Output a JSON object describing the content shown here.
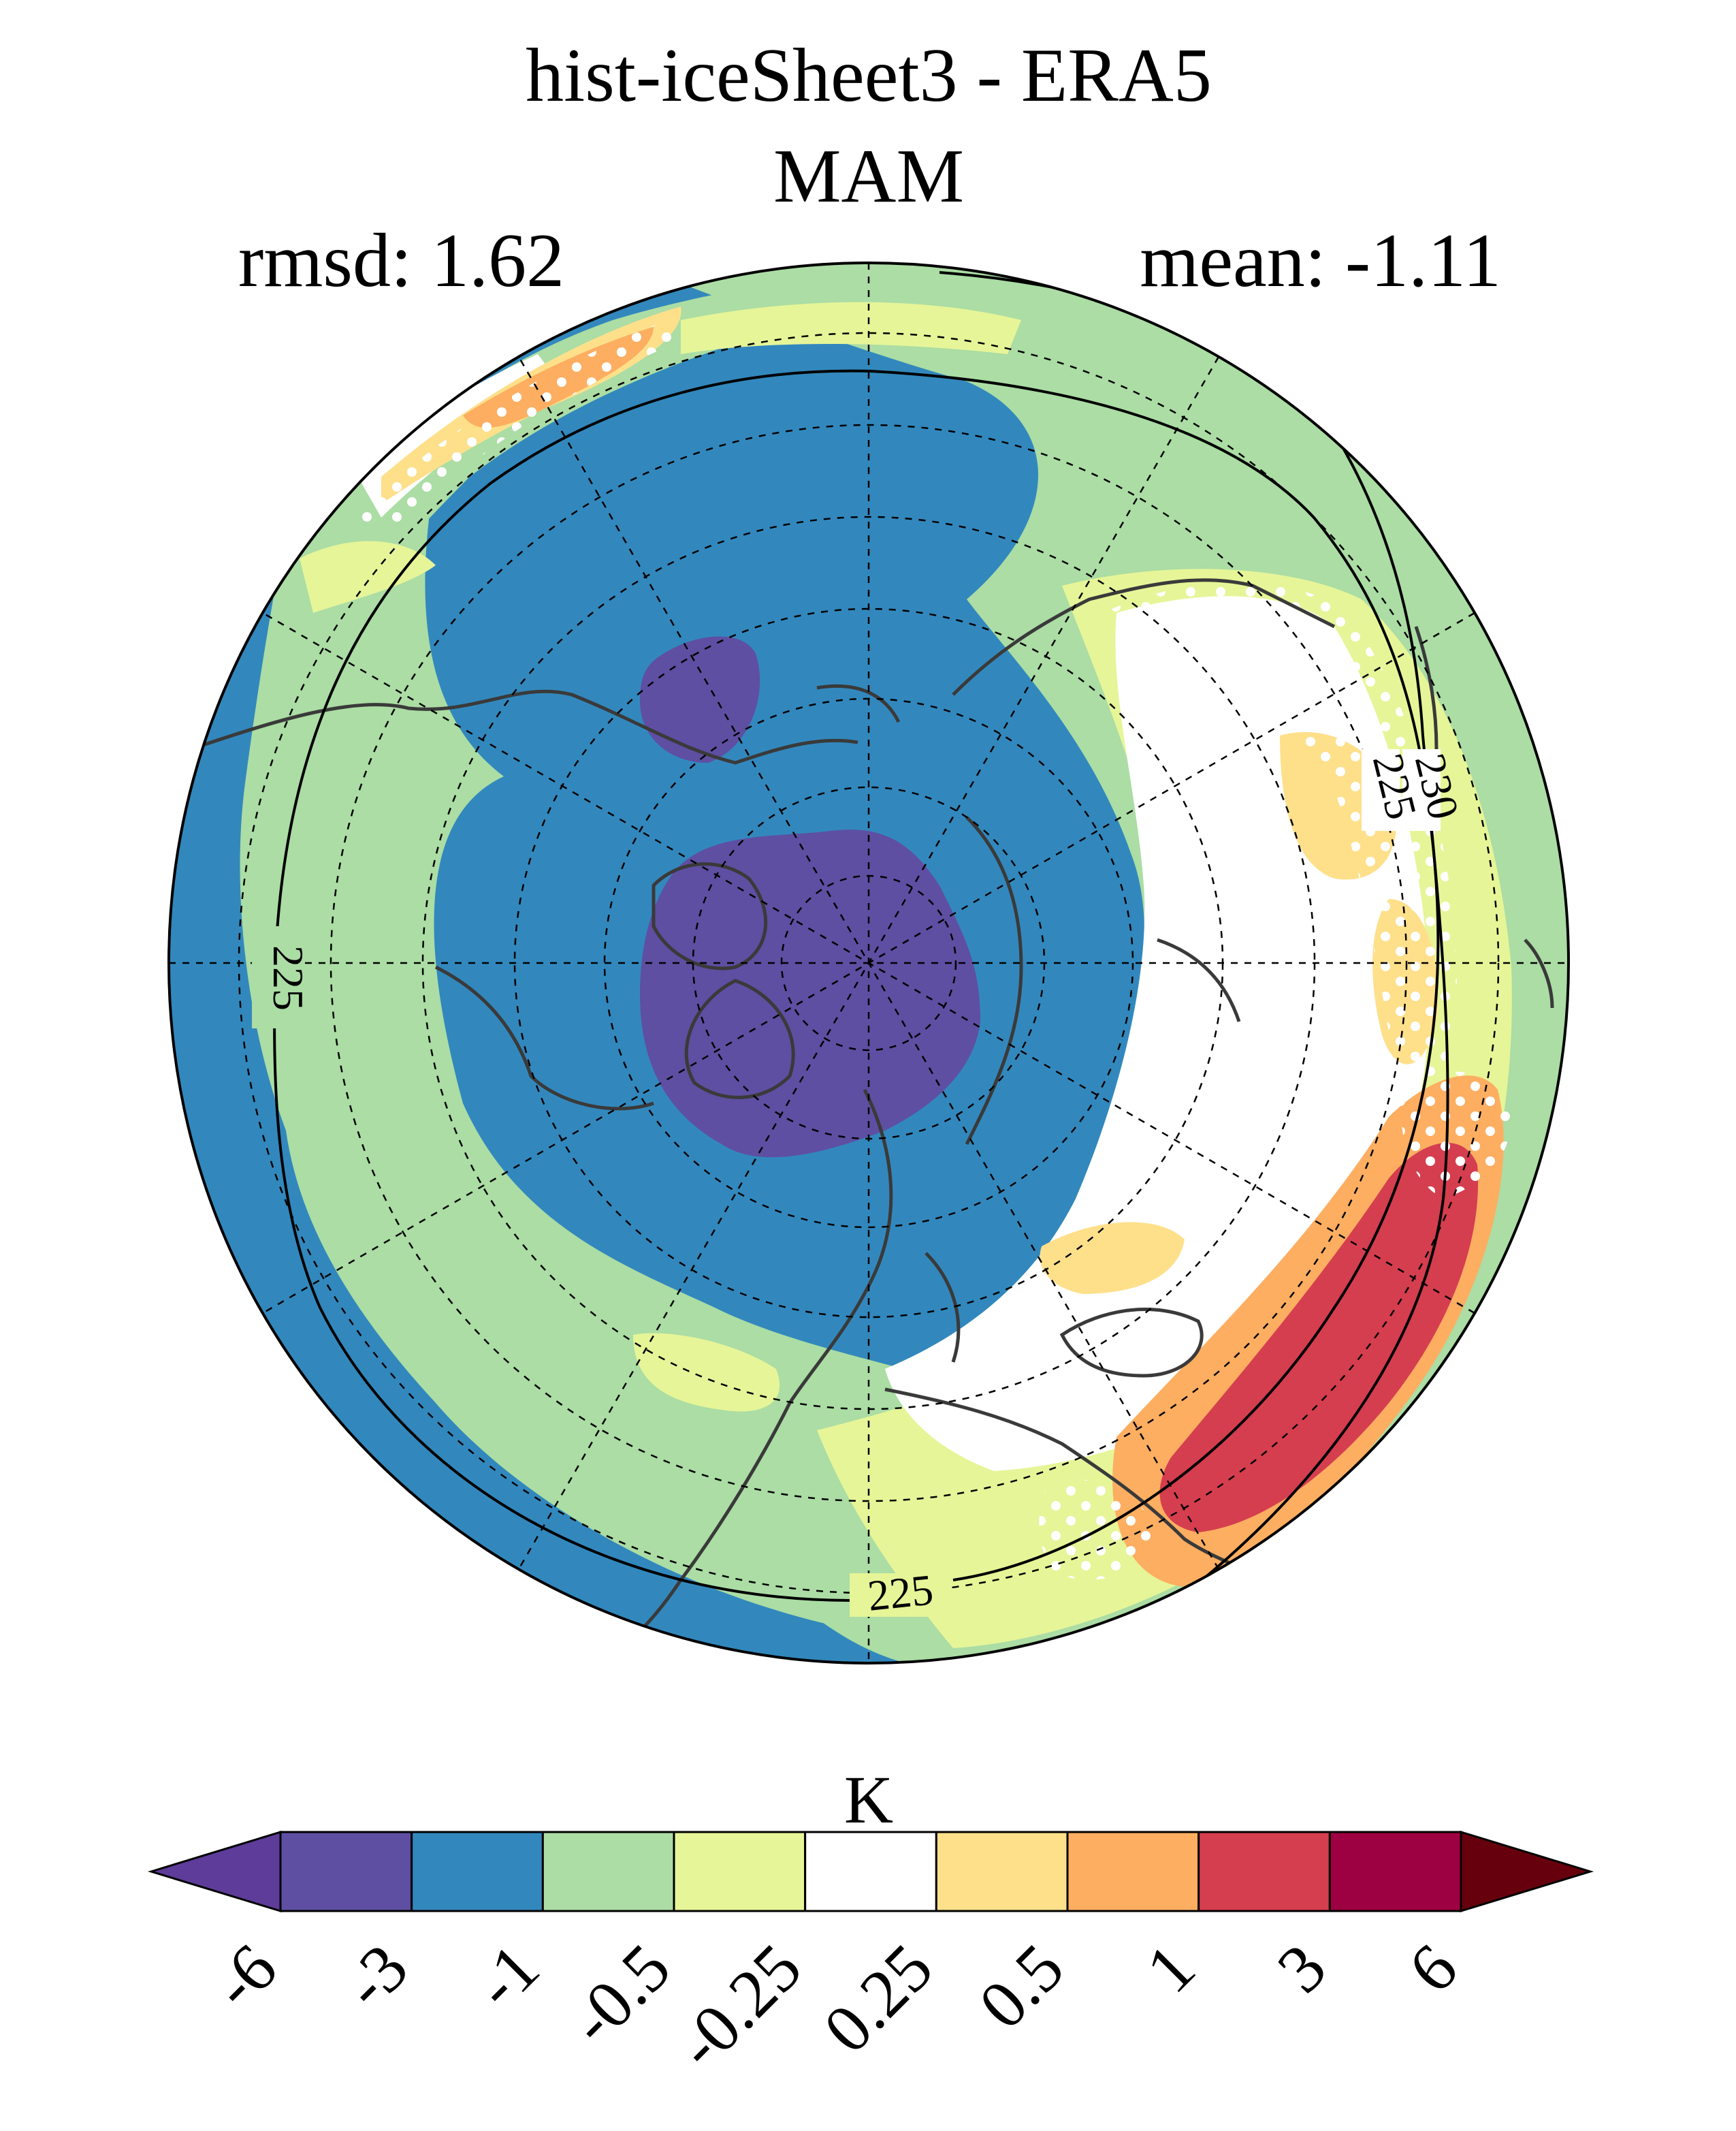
{
  "title": {
    "line1": "hist-iceSheet3 - ERA5",
    "line2": "MAM"
  },
  "stats": {
    "rmsd": "rmsd: 1.62",
    "mean": "mean: -1.11"
  },
  "map": {
    "projection": "north-polar-stereographic",
    "contour_labels": [
      "225",
      "225",
      "225",
      "230"
    ],
    "stippling": "white dots mark selected regions"
  },
  "colorbar": {
    "unit": "K",
    "ticks": [
      "-6",
      "-3",
      "-1",
      "-0.5",
      "-0.25",
      "0.25",
      "0.5",
      "1",
      "3",
      "6"
    ],
    "colors": [
      "#5e3c99",
      "#5e4fa2",
      "#3288bd",
      "#abdda4",
      "#e6f598",
      "#ffffff",
      "#fee08b",
      "#fdae61",
      "#d53e4f",
      "#9e0142",
      "#67000d"
    ],
    "extend": "both"
  }
}
